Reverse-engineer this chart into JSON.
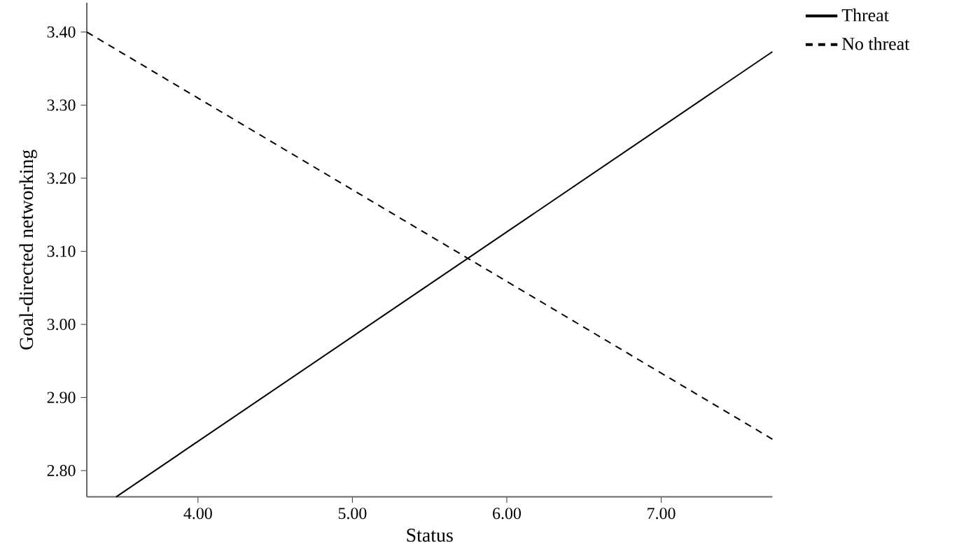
{
  "chart_data": {
    "type": "line",
    "xlabel": "Status",
    "ylabel": "Goal-directed networking",
    "xlim": [
      3.28,
      7.72
    ],
    "ylim": [
      2.764,
      3.44
    ],
    "xticks": [
      {
        "value": 4,
        "label": "4.00"
      },
      {
        "value": 5,
        "label": "5.00"
      },
      {
        "value": 6,
        "label": "6.00"
      },
      {
        "value": 7,
        "label": "7.00"
      }
    ],
    "yticks": [
      {
        "value": 2.8,
        "label": "2.80"
      },
      {
        "value": 2.9,
        "label": "2.90"
      },
      {
        "value": 3.0,
        "label": "3.00"
      },
      {
        "value": 3.1,
        "label": "3.10"
      },
      {
        "value": 3.2,
        "label": "3.20"
      },
      {
        "value": 3.3,
        "label": "3.30"
      },
      {
        "value": 3.4,
        "label": "3.40"
      }
    ],
    "series": [
      {
        "name": "Threat",
        "color": "#000000",
        "line_style": "solid",
        "x": [
          3.47,
          7.72
        ],
        "values": [
          2.764,
          3.373
        ]
      },
      {
        "name": "No threat",
        "color": "#000000",
        "line_style": "dashed",
        "x": [
          3.28,
          7.72
        ],
        "values": [
          3.4,
          2.843
        ]
      }
    ],
    "legend": "top right",
    "grid": false,
    "marker": "none"
  }
}
